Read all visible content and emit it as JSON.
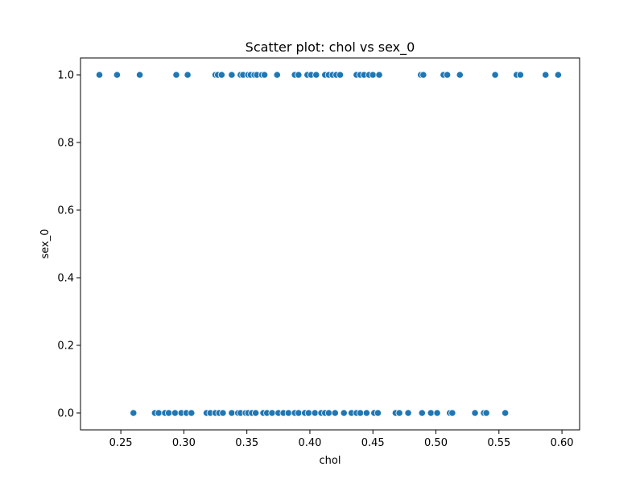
{
  "chart_data": {
    "type": "scatter",
    "title": "Scatter plot: chol vs sex_0",
    "xlabel": "chol",
    "ylabel": "sex_0",
    "xlim": [
      0.218,
      0.614
    ],
    "ylim": [
      -0.05,
      1.05
    ],
    "xticks": [
      0.25,
      0.3,
      0.35,
      0.4,
      0.45,
      0.5,
      0.55,
      0.6
    ],
    "xtick_labels": [
      "0.25",
      "0.30",
      "0.35",
      "0.40",
      "0.45",
      "0.50",
      "0.55",
      "0.60"
    ],
    "yticks": [
      0.0,
      0.2,
      0.4,
      0.6,
      0.8,
      1.0
    ],
    "ytick_labels": [
      "0.0",
      "0.2",
      "0.4",
      "0.6",
      "0.8",
      "1.0"
    ],
    "grid": false,
    "marker_color": "#1f77b4",
    "marker_edge_color": "#ffffff",
    "series": [
      {
        "points": [
          {
            "x": 0.233,
            "y": 1
          },
          {
            "x": 0.247,
            "y": 1
          },
          {
            "x": 0.265,
            "y": 1
          },
          {
            "x": 0.294,
            "y": 1
          },
          {
            "x": 0.303,
            "y": 1
          },
          {
            "x": 0.325,
            "y": 1
          },
          {
            "x": 0.327,
            "y": 1
          },
          {
            "x": 0.33,
            "y": 1
          },
          {
            "x": 0.338,
            "y": 1
          },
          {
            "x": 0.345,
            "y": 1
          },
          {
            "x": 0.347,
            "y": 1
          },
          {
            "x": 0.351,
            "y": 1
          },
          {
            "x": 0.353,
            "y": 1
          },
          {
            "x": 0.356,
            "y": 1
          },
          {
            "x": 0.358,
            "y": 1
          },
          {
            "x": 0.362,
            "y": 1
          },
          {
            "x": 0.364,
            "y": 1
          },
          {
            "x": 0.374,
            "y": 1
          },
          {
            "x": 0.388,
            "y": 1
          },
          {
            "x": 0.391,
            "y": 1
          },
          {
            "x": 0.398,
            "y": 1
          },
          {
            "x": 0.401,
            "y": 1
          },
          {
            "x": 0.405,
            "y": 1
          },
          {
            "x": 0.412,
            "y": 1
          },
          {
            "x": 0.415,
            "y": 1
          },
          {
            "x": 0.418,
            "y": 1
          },
          {
            "x": 0.421,
            "y": 1
          },
          {
            "x": 0.424,
            "y": 1
          },
          {
            "x": 0.437,
            "y": 1
          },
          {
            "x": 0.44,
            "y": 1
          },
          {
            "x": 0.443,
            "y": 1
          },
          {
            "x": 0.447,
            "y": 1
          },
          {
            "x": 0.45,
            "y": 1
          },
          {
            "x": 0.455,
            "y": 1
          },
          {
            "x": 0.488,
            "y": 1
          },
          {
            "x": 0.49,
            "y": 1
          },
          {
            "x": 0.506,
            "y": 1
          },
          {
            "x": 0.509,
            "y": 1
          },
          {
            "x": 0.519,
            "y": 1
          },
          {
            "x": 0.547,
            "y": 1
          },
          {
            "x": 0.564,
            "y": 1
          },
          {
            "x": 0.567,
            "y": 1
          },
          {
            "x": 0.587,
            "y": 1
          },
          {
            "x": 0.597,
            "y": 1
          },
          {
            "x": 0.26,
            "y": 0
          },
          {
            "x": 0.277,
            "y": 0
          },
          {
            "x": 0.28,
            "y": 0
          },
          {
            "x": 0.285,
            "y": 0
          },
          {
            "x": 0.288,
            "y": 0
          },
          {
            "x": 0.293,
            "y": 0
          },
          {
            "x": 0.298,
            "y": 0
          },
          {
            "x": 0.302,
            "y": 0
          },
          {
            "x": 0.306,
            "y": 0
          },
          {
            "x": 0.318,
            "y": 0
          },
          {
            "x": 0.321,
            "y": 0
          },
          {
            "x": 0.325,
            "y": 0
          },
          {
            "x": 0.328,
            "y": 0
          },
          {
            "x": 0.331,
            "y": 0
          },
          {
            "x": 0.338,
            "y": 0
          },
          {
            "x": 0.343,
            "y": 0
          },
          {
            "x": 0.345,
            "y": 0
          },
          {
            "x": 0.349,
            "y": 0
          },
          {
            "x": 0.351,
            "y": 0
          },
          {
            "x": 0.354,
            "y": 0
          },
          {
            "x": 0.357,
            "y": 0
          },
          {
            "x": 0.363,
            "y": 0
          },
          {
            "x": 0.366,
            "y": 0
          },
          {
            "x": 0.37,
            "y": 0
          },
          {
            "x": 0.375,
            "y": 0
          },
          {
            "x": 0.379,
            "y": 0
          },
          {
            "x": 0.383,
            "y": 0
          },
          {
            "x": 0.388,
            "y": 0
          },
          {
            "x": 0.391,
            "y": 0
          },
          {
            "x": 0.396,
            "y": 0
          },
          {
            "x": 0.399,
            "y": 0
          },
          {
            "x": 0.404,
            "y": 0
          },
          {
            "x": 0.409,
            "y": 0
          },
          {
            "x": 0.412,
            "y": 0
          },
          {
            "x": 0.415,
            "y": 0
          },
          {
            "x": 0.42,
            "y": 0
          },
          {
            "x": 0.427,
            "y": 0
          },
          {
            "x": 0.433,
            "y": 0
          },
          {
            "x": 0.437,
            "y": 0
          },
          {
            "x": 0.44,
            "y": 0
          },
          {
            "x": 0.445,
            "y": 0
          },
          {
            "x": 0.451,
            "y": 0
          },
          {
            "x": 0.454,
            "y": 0
          },
          {
            "x": 0.468,
            "y": 0
          },
          {
            "x": 0.471,
            "y": 0
          },
          {
            "x": 0.478,
            "y": 0
          },
          {
            "x": 0.489,
            "y": 0
          },
          {
            "x": 0.496,
            "y": 0
          },
          {
            "x": 0.501,
            "y": 0
          },
          {
            "x": 0.511,
            "y": 0
          },
          {
            "x": 0.513,
            "y": 0
          },
          {
            "x": 0.531,
            "y": 0
          },
          {
            "x": 0.538,
            "y": 0
          },
          {
            "x": 0.54,
            "y": 0
          },
          {
            "x": 0.555,
            "y": 0
          }
        ]
      }
    ]
  }
}
